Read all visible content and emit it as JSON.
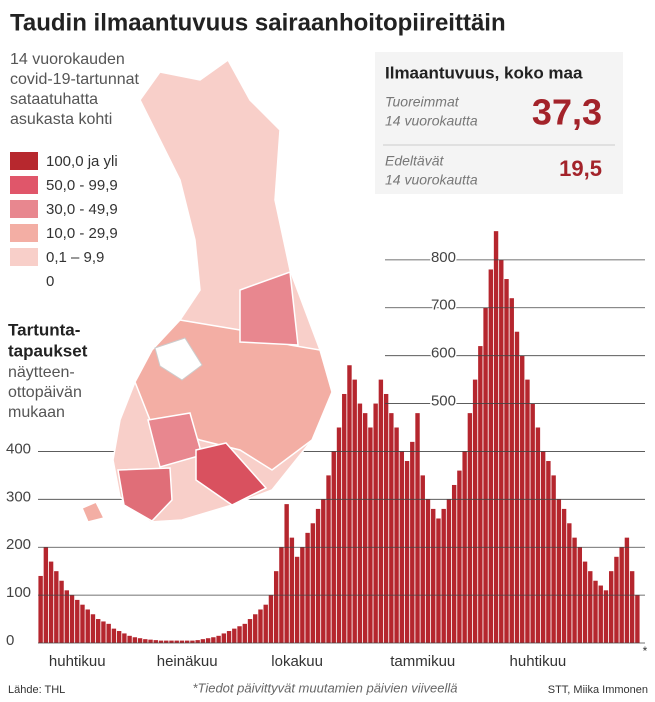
{
  "title": "Taudin ilmaantuvuus sairaanhoitopiireittäin",
  "map": {
    "subtitle": [
      "14 vuorokauden",
      "covid-19-tartunnat",
      "sataatuhatta",
      "asukasta kohti"
    ],
    "legend": [
      {
        "label": "100,0 ja yli",
        "color": "#b7282e"
      },
      {
        "label": "50,0 - 99,9",
        "color": "#e0566a"
      },
      {
        "label": "30,0 - 49,9",
        "color": "#e8878f"
      },
      {
        "label": "10,0 - 29,9",
        "color": "#f3aea4"
      },
      {
        "label": "0,1 – 9,9",
        "color": "#f8cfc9"
      },
      {
        "label": "0",
        "color": "#ffffff"
      }
    ]
  },
  "info_box": {
    "title": "Ilmaantuvuus, koko maa",
    "rows": [
      {
        "label": [
          "Tuoreimmat",
          "14 vuorokautta"
        ],
        "value": "37,3"
      },
      {
        "label": [
          "Edeltävät",
          "14 vuorokautta"
        ],
        "value": "19,5"
      }
    ]
  },
  "chart_data": {
    "type": "bar",
    "title": [
      "Tartunta-",
      "tapaukset"
    ],
    "subtitle": [
      "näytteen-",
      "ottopäivän",
      "mukaan"
    ],
    "color": "#b5262e",
    "categories": [
      null,
      null,
      null,
      null,
      null,
      null,
      null,
      "huhtikuu",
      null,
      null,
      null,
      null,
      null,
      null,
      null,
      null,
      null,
      null,
      null,
      null,
      null,
      null,
      null,
      null,
      null,
      null,
      null,
      null,
      "heinäkuu",
      null,
      null,
      null,
      null,
      null,
      null,
      null,
      null,
      null,
      null,
      null,
      null,
      null,
      null,
      null,
      null,
      null,
      null,
      null,
      null,
      "lokakuu",
      null,
      null,
      null,
      null,
      null,
      null,
      null,
      null,
      null,
      null,
      null,
      null,
      null,
      null,
      null,
      null,
      null,
      null,
      null,
      null,
      null,
      null,
      null,
      "tammikuu",
      null,
      null,
      null,
      null,
      null,
      null,
      null,
      null,
      null,
      null,
      null,
      null,
      null,
      null,
      null,
      null,
      null,
      null,
      null,
      null,
      null,
      "huhtikuu",
      null,
      null,
      null,
      null,
      null,
      null,
      null,
      null,
      null,
      null,
      null,
      null,
      null,
      null,
      null,
      null,
      null,
      null,
      null
    ],
    "values": [
      140,
      200,
      170,
      150,
      130,
      110,
      100,
      90,
      80,
      70,
      60,
      50,
      45,
      40,
      30,
      25,
      20,
      15,
      12,
      10,
      8,
      7,
      6,
      5,
      5,
      5,
      5,
      5,
      5,
      5,
      6,
      8,
      10,
      12,
      15,
      20,
      25,
      30,
      35,
      40,
      50,
      60,
      70,
      80,
      100,
      150,
      200,
      290,
      220,
      180,
      200,
      230,
      250,
      280,
      300,
      350,
      400,
      450,
      520,
      580,
      550,
      500,
      480,
      450,
      500,
      550,
      520,
      480,
      450,
      400,
      380,
      420,
      480,
      350,
      300,
      280,
      260,
      280,
      300,
      330,
      360,
      400,
      480,
      550,
      620,
      700,
      780,
      860,
      800,
      760,
      720,
      650,
      600,
      550,
      500,
      450,
      400,
      380,
      350,
      300,
      280,
      250,
      220,
      200,
      170,
      150,
      130,
      120,
      110,
      150,
      180,
      200,
      220,
      150,
      100
    ],
    "ylim": [
      0,
      900
    ],
    "yticks": [
      0,
      100,
      200,
      300,
      400,
      500,
      600,
      700,
      800
    ],
    "grid": true,
    "end_mark": "*"
  },
  "footer": {
    "source": "Lähde: THL",
    "note": "*Tiedot päivittyvät muutamien päivien viiveellä",
    "credit": "STT, Miika Immonen"
  }
}
